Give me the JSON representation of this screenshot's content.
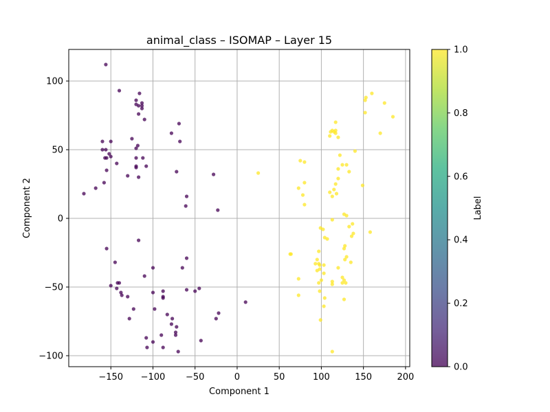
{
  "chart_data": {
    "type": "scatter",
    "title": "animal_class – ISOMAP – Layer 15",
    "xlabel": "Component 1",
    "ylabel": "Component 2",
    "xlim": [
      -200,
      205
    ],
    "ylim": [
      -108,
      123
    ],
    "x_ticks": [
      -150,
      -100,
      -50,
      0,
      50,
      100,
      150,
      200
    ],
    "y_ticks": [
      -100,
      -50,
      0,
      50,
      100
    ],
    "x_tick_labels": [
      "−150",
      "−100",
      "−50",
      "0",
      "50",
      "100",
      "150",
      "200"
    ],
    "y_tick_labels": [
      "−100",
      "−50",
      "0",
      "50",
      "100"
    ],
    "grid": true,
    "colorbar": {
      "label": "Label",
      "range": [
        0.0,
        1.0
      ],
      "ticks": [
        "0.0",
        "0.2",
        "0.4",
        "0.6",
        "0.8",
        "1.0"
      ],
      "colormap": "viridis"
    },
    "series": [
      {
        "label_value": 0,
        "color": "#440154",
        "points": [
          [
            -156,
            112
          ],
          [
            -140,
            93
          ],
          [
            -116,
            91
          ],
          [
            -120,
            83
          ],
          [
            -113,
            84
          ],
          [
            -120,
            86
          ],
          [
            -117,
            82
          ],
          [
            -113,
            82
          ],
          [
            -113,
            80
          ],
          [
            -110,
            72
          ],
          [
            -117,
            76
          ],
          [
            -69,
            69
          ],
          [
            -78,
            62
          ],
          [
            -68,
            56
          ],
          [
            -125,
            58
          ],
          [
            -160,
            56
          ],
          [
            -150,
            56
          ],
          [
            -118,
            53
          ],
          [
            -120,
            51
          ],
          [
            -160,
            50
          ],
          [
            -156,
            50
          ],
          [
            -152,
            47
          ],
          [
            -150,
            45
          ],
          [
            -157,
            44
          ],
          [
            -155,
            44
          ],
          [
            -112,
            44
          ],
          [
            -120,
            44
          ],
          [
            -143,
            40
          ],
          [
            -108,
            38
          ],
          [
            -120,
            38
          ],
          [
            -120,
            37
          ],
          [
            -155,
            35
          ],
          [
            -72,
            34
          ],
          [
            -130,
            31
          ],
          [
            -117,
            30
          ],
          [
            -28,
            32
          ],
          [
            -158,
            26
          ],
          [
            -60,
            16
          ],
          [
            -168,
            22
          ],
          [
            -182,
            18
          ],
          [
            -61,
            9
          ],
          [
            -23,
            6
          ],
          [
            -117,
            -16
          ],
          [
            -155,
            -22
          ],
          [
            -60,
            -29
          ],
          [
            -145,
            -32
          ],
          [
            -100,
            -36
          ],
          [
            -65,
            -36
          ],
          [
            -110,
            -42
          ],
          [
            -150,
            -49
          ],
          [
            -142,
            -47
          ],
          [
            -140,
            -47
          ],
          [
            -143,
            -51
          ],
          [
            -138,
            -54
          ],
          [
            -137,
            -56
          ],
          [
            -130,
            -57
          ],
          [
            -60,
            -52
          ],
          [
            -45,
            -51
          ],
          [
            -50,
            -53
          ],
          [
            -100,
            -54
          ],
          [
            -88,
            -53
          ],
          [
            -88,
            -57
          ],
          [
            -88,
            -58
          ],
          [
            -123,
            -66
          ],
          [
            -98,
            -66
          ],
          [
            -83,
            -70
          ],
          [
            -22,
            -69
          ],
          [
            -128,
            -73
          ],
          [
            -77,
            -73
          ],
          [
            -78,
            -77
          ],
          [
            -25,
            -73
          ],
          [
            -72,
            -79
          ],
          [
            -73,
            -83
          ],
          [
            -90,
            -85
          ],
          [
            -73,
            -85
          ],
          [
            -108,
            -87
          ],
          [
            -43,
            -89
          ],
          [
            -100,
            -90
          ],
          [
            -107,
            -94
          ],
          [
            -88,
            -94
          ],
          [
            -70,
            -97
          ],
          [
            10,
            -61
          ]
        ]
      },
      {
        "label_value": 1,
        "color": "#fde725",
        "points": [
          [
            160,
            91
          ],
          [
            153,
            88
          ],
          [
            152,
            86
          ],
          [
            175,
            84
          ],
          [
            152,
            77
          ],
          [
            185,
            74
          ],
          [
            117,
            70
          ],
          [
            170,
            62
          ],
          [
            113,
            64
          ],
          [
            111,
            63
          ],
          [
            115,
            63
          ],
          [
            117,
            64
          ],
          [
            117,
            62
          ],
          [
            110,
            60
          ],
          [
            120,
            59
          ],
          [
            140,
            49
          ],
          [
            122,
            46
          ],
          [
            75,
            42
          ],
          [
            80,
            41
          ],
          [
            125,
            39
          ],
          [
            130,
            39
          ],
          [
            120,
            36
          ],
          [
            133,
            34
          ],
          [
            120,
            29
          ],
          [
            25,
            33
          ],
          [
            80,
            26
          ],
          [
            117,
            25
          ],
          [
            115,
            21
          ],
          [
            73,
            22
          ],
          [
            110,
            19
          ],
          [
            118,
            18
          ],
          [
            78,
            17
          ],
          [
            113,
            16
          ],
          [
            80,
            10
          ],
          [
            127,
            3
          ],
          [
            130,
            2
          ],
          [
            113,
            -1
          ],
          [
            133,
            -6
          ],
          [
            137,
            -4
          ],
          [
            99,
            -7
          ],
          [
            102,
            -8
          ],
          [
            158,
            -10
          ],
          [
            138,
            -11
          ],
          [
            136,
            -13
          ],
          [
            104,
            -14
          ],
          [
            107,
            -15
          ],
          [
            149,
            24
          ],
          [
            63,
            -26
          ],
          [
            64,
            -26
          ],
          [
            97,
            -24
          ],
          [
            127,
            -22
          ],
          [
            130,
            -28
          ],
          [
            128,
            -30
          ],
          [
            95,
            -30
          ],
          [
            135,
            -32
          ],
          [
            93,
            -33
          ],
          [
            97,
            -33
          ],
          [
            98,
            -34
          ],
          [
            103,
            -34
          ],
          [
            120,
            -36
          ],
          [
            103,
            -40
          ],
          [
            73,
            -44
          ],
          [
            125,
            -43
          ],
          [
            127,
            -45
          ],
          [
            97,
            -47
          ],
          [
            113,
            -46
          ],
          [
            113,
            -48
          ],
          [
            125,
            -47
          ],
          [
            129,
            -47
          ],
          [
            98,
            -53
          ],
          [
            104,
            -58
          ],
          [
            127,
            -59
          ],
          [
            73,
            -56
          ],
          [
            103,
            -64
          ],
          [
            99,
            -74
          ],
          [
            113,
            -97
          ],
          [
            128,
            -20
          ],
          [
            100,
            -45
          ],
          [
            95,
            -38
          ],
          [
            98,
            -37
          ]
        ]
      }
    ]
  }
}
